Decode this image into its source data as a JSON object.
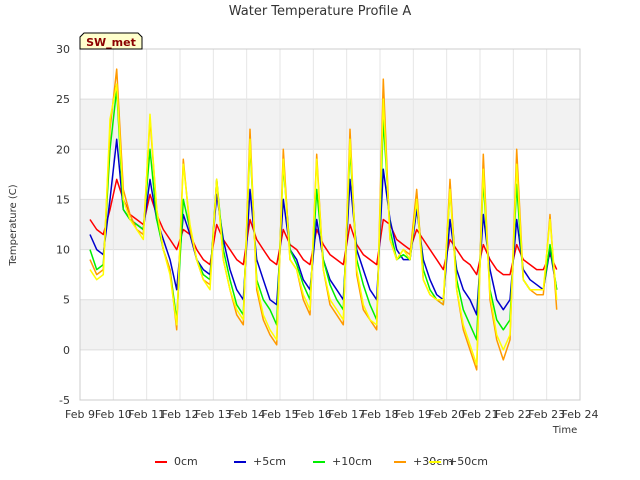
{
  "chart_data": {
    "type": "line",
    "title": "Water Temperature Profile A",
    "xlabel": "Time",
    "ylabel": "Temperature (C)",
    "station_badge": "SW_met",
    "ylim": [
      -5,
      30
    ],
    "yticks": [
      "-5",
      "0",
      "5",
      "10",
      "15",
      "20",
      "25",
      "30"
    ],
    "xlim": [
      9,
      24
    ],
    "xticks": [
      "Feb 9",
      "Feb 10",
      "Feb 11",
      "Feb 12",
      "Feb 13",
      "Feb 14",
      "Feb 15",
      "Feb 16",
      "Feb 17",
      "Feb 18",
      "Feb 19",
      "Feb 20",
      "Feb 21",
      "Feb 22",
      "Feb 23",
      "Feb 24"
    ],
    "grid": true,
    "legend_position": "bottom",
    "x_days": [
      9.3,
      9.5,
      9.7,
      9.9,
      10.1,
      10.3,
      10.5,
      10.7,
      10.9,
      11.1,
      11.3,
      11.5,
      11.7,
      11.9,
      12.1,
      12.3,
      12.5,
      12.7,
      12.9,
      13.1,
      13.3,
      13.5,
      13.7,
      13.9,
      14.1,
      14.3,
      14.5,
      14.7,
      14.9,
      15.1,
      15.3,
      15.5,
      15.7,
      15.9,
      16.1,
      16.3,
      16.5,
      16.7,
      16.9,
      17.1,
      17.3,
      17.5,
      17.7,
      17.9,
      18.1,
      18.3,
      18.5,
      18.7,
      18.9,
      19.1,
      19.3,
      19.5,
      19.7,
      19.9,
      20.1,
      20.3,
      20.5,
      20.7,
      20.9,
      21.1,
      21.3,
      21.5,
      21.7,
      21.9,
      22.1,
      22.3,
      22.5,
      22.7,
      22.9,
      23.1,
      23.3
    ],
    "series": [
      {
        "name": "0cm",
        "color": "#ff0000",
        "values": [
          13,
          12,
          11.5,
          14,
          17,
          15,
          13.5,
          13,
          12.5,
          15.5,
          13.5,
          12,
          11,
          10,
          12,
          11.5,
          10,
          9,
          8.5,
          12.5,
          11,
          10,
          9,
          8.5,
          13,
          11,
          10,
          9,
          8.5,
          12,
          10.5,
          10,
          9,
          8.5,
          12,
          10.5,
          9.5,
          9,
          8.5,
          12.5,
          10.5,
          9.5,
          9,
          8.5,
          13,
          12.5,
          11,
          10.5,
          10,
          12,
          11,
          10,
          9,
          8,
          11,
          10,
          9,
          8.5,
          7.5,
          10.5,
          9,
          8,
          7.5,
          7.5,
          10.5,
          9,
          8.5,
          8,
          8,
          9.5,
          8
        ]
      },
      {
        "name": "+5cm",
        "color": "#0000cc",
        "values": [
          11.5,
          10,
          9.5,
          15,
          21,
          14,
          13,
          12.5,
          12,
          17,
          13,
          11,
          9,
          6,
          13.5,
          11.5,
          9,
          8,
          7.5,
          15.5,
          11,
          8,
          6,
          5,
          16,
          9,
          7,
          5,
          4.5,
          15,
          10,
          9,
          7,
          6,
          13,
          9,
          7,
          6,
          5,
          17,
          10,
          8,
          6,
          5,
          18,
          13,
          10,
          9,
          9,
          14,
          9,
          7,
          5.5,
          5,
          13,
          8,
          6,
          5,
          3.5,
          13.5,
          8,
          5,
          4,
          5,
          13,
          8,
          7,
          6.5,
          6,
          10,
          6
        ]
      },
      {
        "name": "+10cm",
        "color": "#00ee00",
        "values": [
          10,
          8,
          8.5,
          20,
          26,
          14,
          13,
          12.5,
          12,
          20,
          13,
          10,
          8,
          3,
          15,
          12,
          9,
          7.5,
          7,
          17,
          10,
          7,
          4.5,
          3.5,
          20.5,
          7,
          5,
          4,
          2.5,
          18.5,
          10,
          8.5,
          6.5,
          5,
          16,
          9,
          6.5,
          5,
          4,
          20,
          9,
          6.5,
          4.5,
          3,
          23,
          12,
          9,
          9.5,
          9,
          15,
          8,
          6,
          5,
          4.5,
          16,
          7,
          4,
          2.5,
          1,
          17,
          6,
          3,
          2,
          3,
          16.5,
          7,
          6,
          6,
          6,
          10.5,
          6
        ]
      },
      {
        "name": "+30cm",
        "color": "#ff9900",
        "values": [
          9,
          7.5,
          8,
          22,
          28,
          16,
          13.5,
          12,
          11.5,
          23,
          14,
          10,
          8,
          2,
          19,
          12,
          9,
          7,
          6.5,
          17,
          9,
          6,
          3.5,
          2.5,
          22,
          6,
          3,
          1.5,
          0.5,
          20,
          9,
          8,
          5,
          3.5,
          19.5,
          8,
          4.5,
          3.5,
          2.5,
          22,
          7.5,
          4,
          3,
          2,
          27,
          11,
          9,
          10,
          9.5,
          16,
          7,
          5.5,
          5,
          4.5,
          17,
          6,
          2,
          0,
          -2,
          19.5,
          5,
          1,
          -1,
          1,
          20,
          7,
          6,
          5.5,
          5.5,
          13.5,
          4
        ]
      },
      {
        "name": "+50cm",
        "color": "#ffff00",
        "values": [
          8,
          7,
          7.5,
          23,
          26.5,
          15,
          13,
          12,
          11,
          23.5,
          14,
          10,
          7.5,
          2.5,
          18.5,
          12.5,
          9,
          7,
          6,
          17,
          9,
          6,
          4,
          3,
          21,
          6.5,
          3.5,
          2,
          1,
          19,
          9,
          8,
          5.5,
          4,
          19,
          8,
          5,
          4,
          3,
          21,
          8,
          4.5,
          3,
          2.5,
          25,
          11,
          9,
          10,
          9,
          15,
          7,
          5.5,
          5,
          5,
          16,
          6,
          2.5,
          0.5,
          -1.5,
          18,
          5.5,
          1.5,
          0,
          1.5,
          18.5,
          7,
          6,
          6,
          6,
          13,
          5
        ]
      }
    ]
  }
}
